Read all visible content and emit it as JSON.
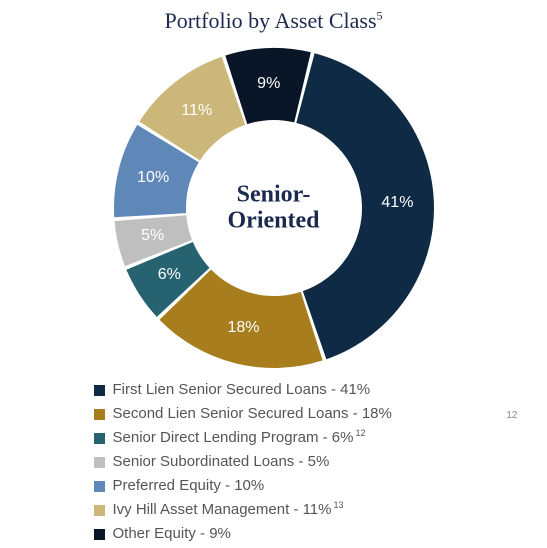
{
  "title": "Portfolio by Asset Class",
  "title_footnote": "5",
  "center_label_line1": "Senior-",
  "center_label_line2": "Oriented",
  "chart": {
    "type": "donut",
    "outer_radius": 160,
    "inner_radius": 88,
    "background_color": "#ffffff",
    "start_angle_deg": 14,
    "label_text_color": "#ffffff",
    "label_fontsize": 16,
    "slices": [
      {
        "label": "First Lien Senior Secured Loans",
        "value": 41,
        "color": "#0f2a44",
        "pct_text": "41%",
        "footnote": ""
      },
      {
        "label": "Second Lien Senior Secured Loans",
        "value": 18,
        "color": "#a77d1d",
        "pct_text": "18%",
        "footnote": ""
      },
      {
        "label": "Senior Direct Lending Program",
        "value": 6,
        "color": "#276271",
        "pct_text": "6%",
        "footnote": "12"
      },
      {
        "label": "Senior Subordinated Loans",
        "value": 5,
        "color": "#bfbfbf",
        "pct_text": "5%",
        "footnote": ""
      },
      {
        "label": "Preferred Equity",
        "value": 10,
        "color": "#5f87b8",
        "pct_text": "10%",
        "footnote": ""
      },
      {
        "label": "Ivy Hill Asset Management",
        "value": 11,
        "color": "#cbb779",
        "pct_text": "11%",
        "footnote": "13"
      },
      {
        "label": "Other Equity",
        "value": 9,
        "color": "#081627",
        "pct_text": "9%",
        "footnote": ""
      }
    ]
  },
  "legend_title_color": "#555555",
  "floating_note": "12"
}
